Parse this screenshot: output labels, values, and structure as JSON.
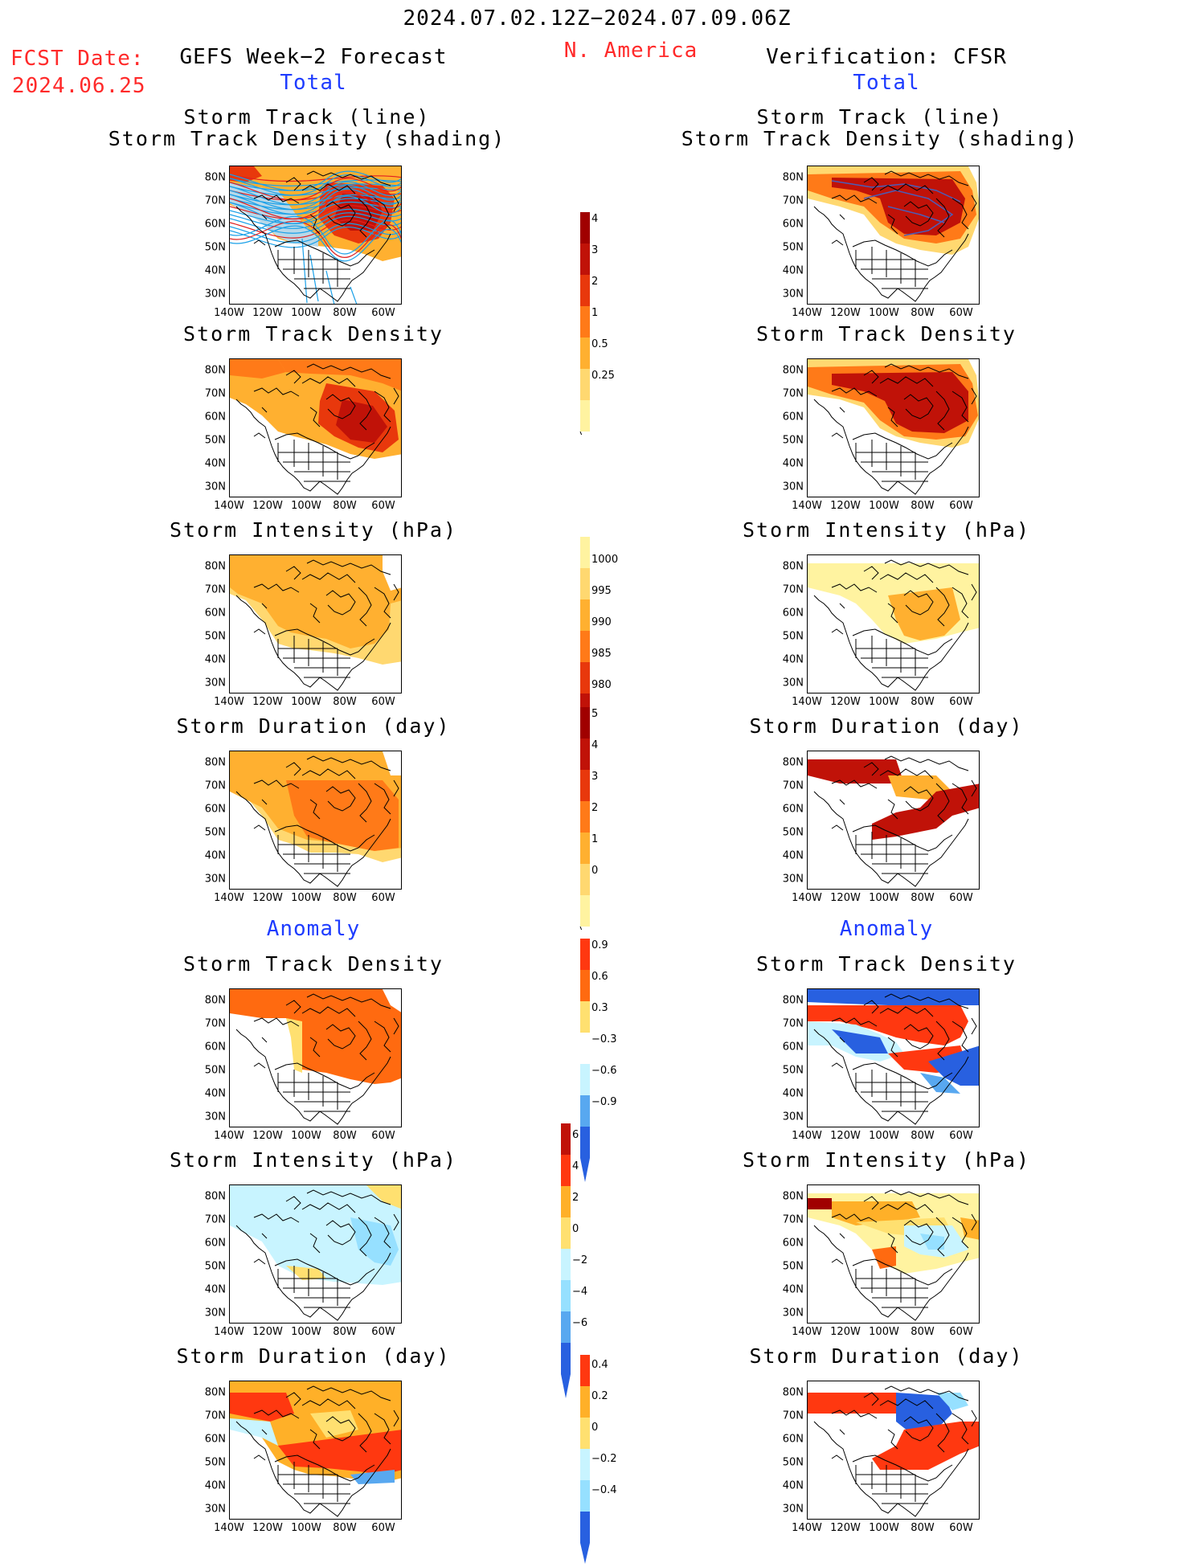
{
  "header": {
    "date_range": "2024.07.02.12Z−2024.07.09.06Z",
    "region": "N. America",
    "fcst_label": "FCST Date:",
    "fcst_date": "2024.06.25",
    "left_title": "GEFS Week−2 Forecast",
    "right_title": "Verification: CFSR",
    "total": "Total",
    "anomaly": "Anomaly"
  },
  "panels": {
    "storm_track_line": "Storm Track (line)",
    "storm_track_shading": "Storm Track Density (shading)",
    "storm_track_density": "Storm Track Density",
    "storm_intensity": "Storm Intensity (hPa)",
    "storm_duration": "Storm Duration (day)"
  },
  "axes": {
    "lat_ticks": [
      "80N",
      "70N",
      "60N",
      "50N",
      "40N",
      "30N"
    ],
    "lon_ticks": [
      "140W",
      "120W",
      "100W",
      "80W",
      "60W"
    ]
  },
  "colorbars": {
    "density_total": [
      "4",
      "3",
      "2",
      "1",
      "0.5",
      "0.25"
    ],
    "intensity_total": [
      "1000",
      "995",
      "990",
      "985",
      "980"
    ],
    "duration_total": [
      "5",
      "4",
      "3",
      "2",
      "1",
      "0"
    ],
    "density_anom": [
      "0.9",
      "0.6",
      "0.3",
      "−0.3",
      "−0.6",
      "−0.9"
    ],
    "intensity_anom": [
      "6",
      "4",
      "2",
      "0",
      "−2",
      "−4",
      "−6"
    ],
    "duration_anom": [
      "0.4",
      "0.2",
      "0",
      "−0.2",
      "−0.4"
    ]
  },
  "colors": {
    "warm_scale": [
      "#fff3a0",
      "#ffd870",
      "#ffb030",
      "#ff7a18",
      "#e8380c",
      "#c01208",
      "#a00000"
    ],
    "anom_warm": [
      "#ffe070",
      "#ffb028",
      "#ff6a10",
      "#ff3810"
    ],
    "anom_cool": [
      "#c8f4ff",
      "#96e0ff",
      "#58a8f0",
      "#2860e0"
    ],
    "track_line": "#1aa0e8",
    "title_red": "#ff2a2a",
    "title_blue": "#1e3cff"
  }
}
